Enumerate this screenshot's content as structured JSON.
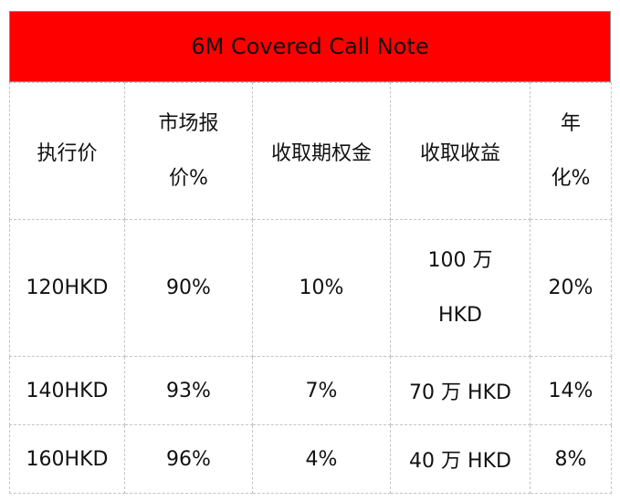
{
  "title": "6M Covered Call Note",
  "colors": {
    "title_background": "#ff0000",
    "border": "#c4c4c4"
  },
  "table": {
    "headers": [
      {
        "lines": [
          "执行价"
        ]
      },
      {
        "lines": [
          "市场报",
          "价%"
        ]
      },
      {
        "lines": [
          "收取期权金"
        ]
      },
      {
        "lines": [
          "收取收益"
        ]
      },
      {
        "lines": [
          "年",
          "化%"
        ]
      }
    ],
    "rows": [
      {
        "strike": "120HKD",
        "market_price_pct": "90%",
        "premium": "10%",
        "income_lines": [
          "100 万",
          "HKD"
        ],
        "annualized": "20%"
      },
      {
        "strike": "140HKD",
        "market_price_pct": "93%",
        "premium": "7%",
        "income": "70 万 HKD",
        "annualized": "14%"
      },
      {
        "strike": "160HKD",
        "market_price_pct": "96%",
        "premium": "4%",
        "income": "40 万 HKD",
        "annualized": "8%"
      }
    ]
  }
}
